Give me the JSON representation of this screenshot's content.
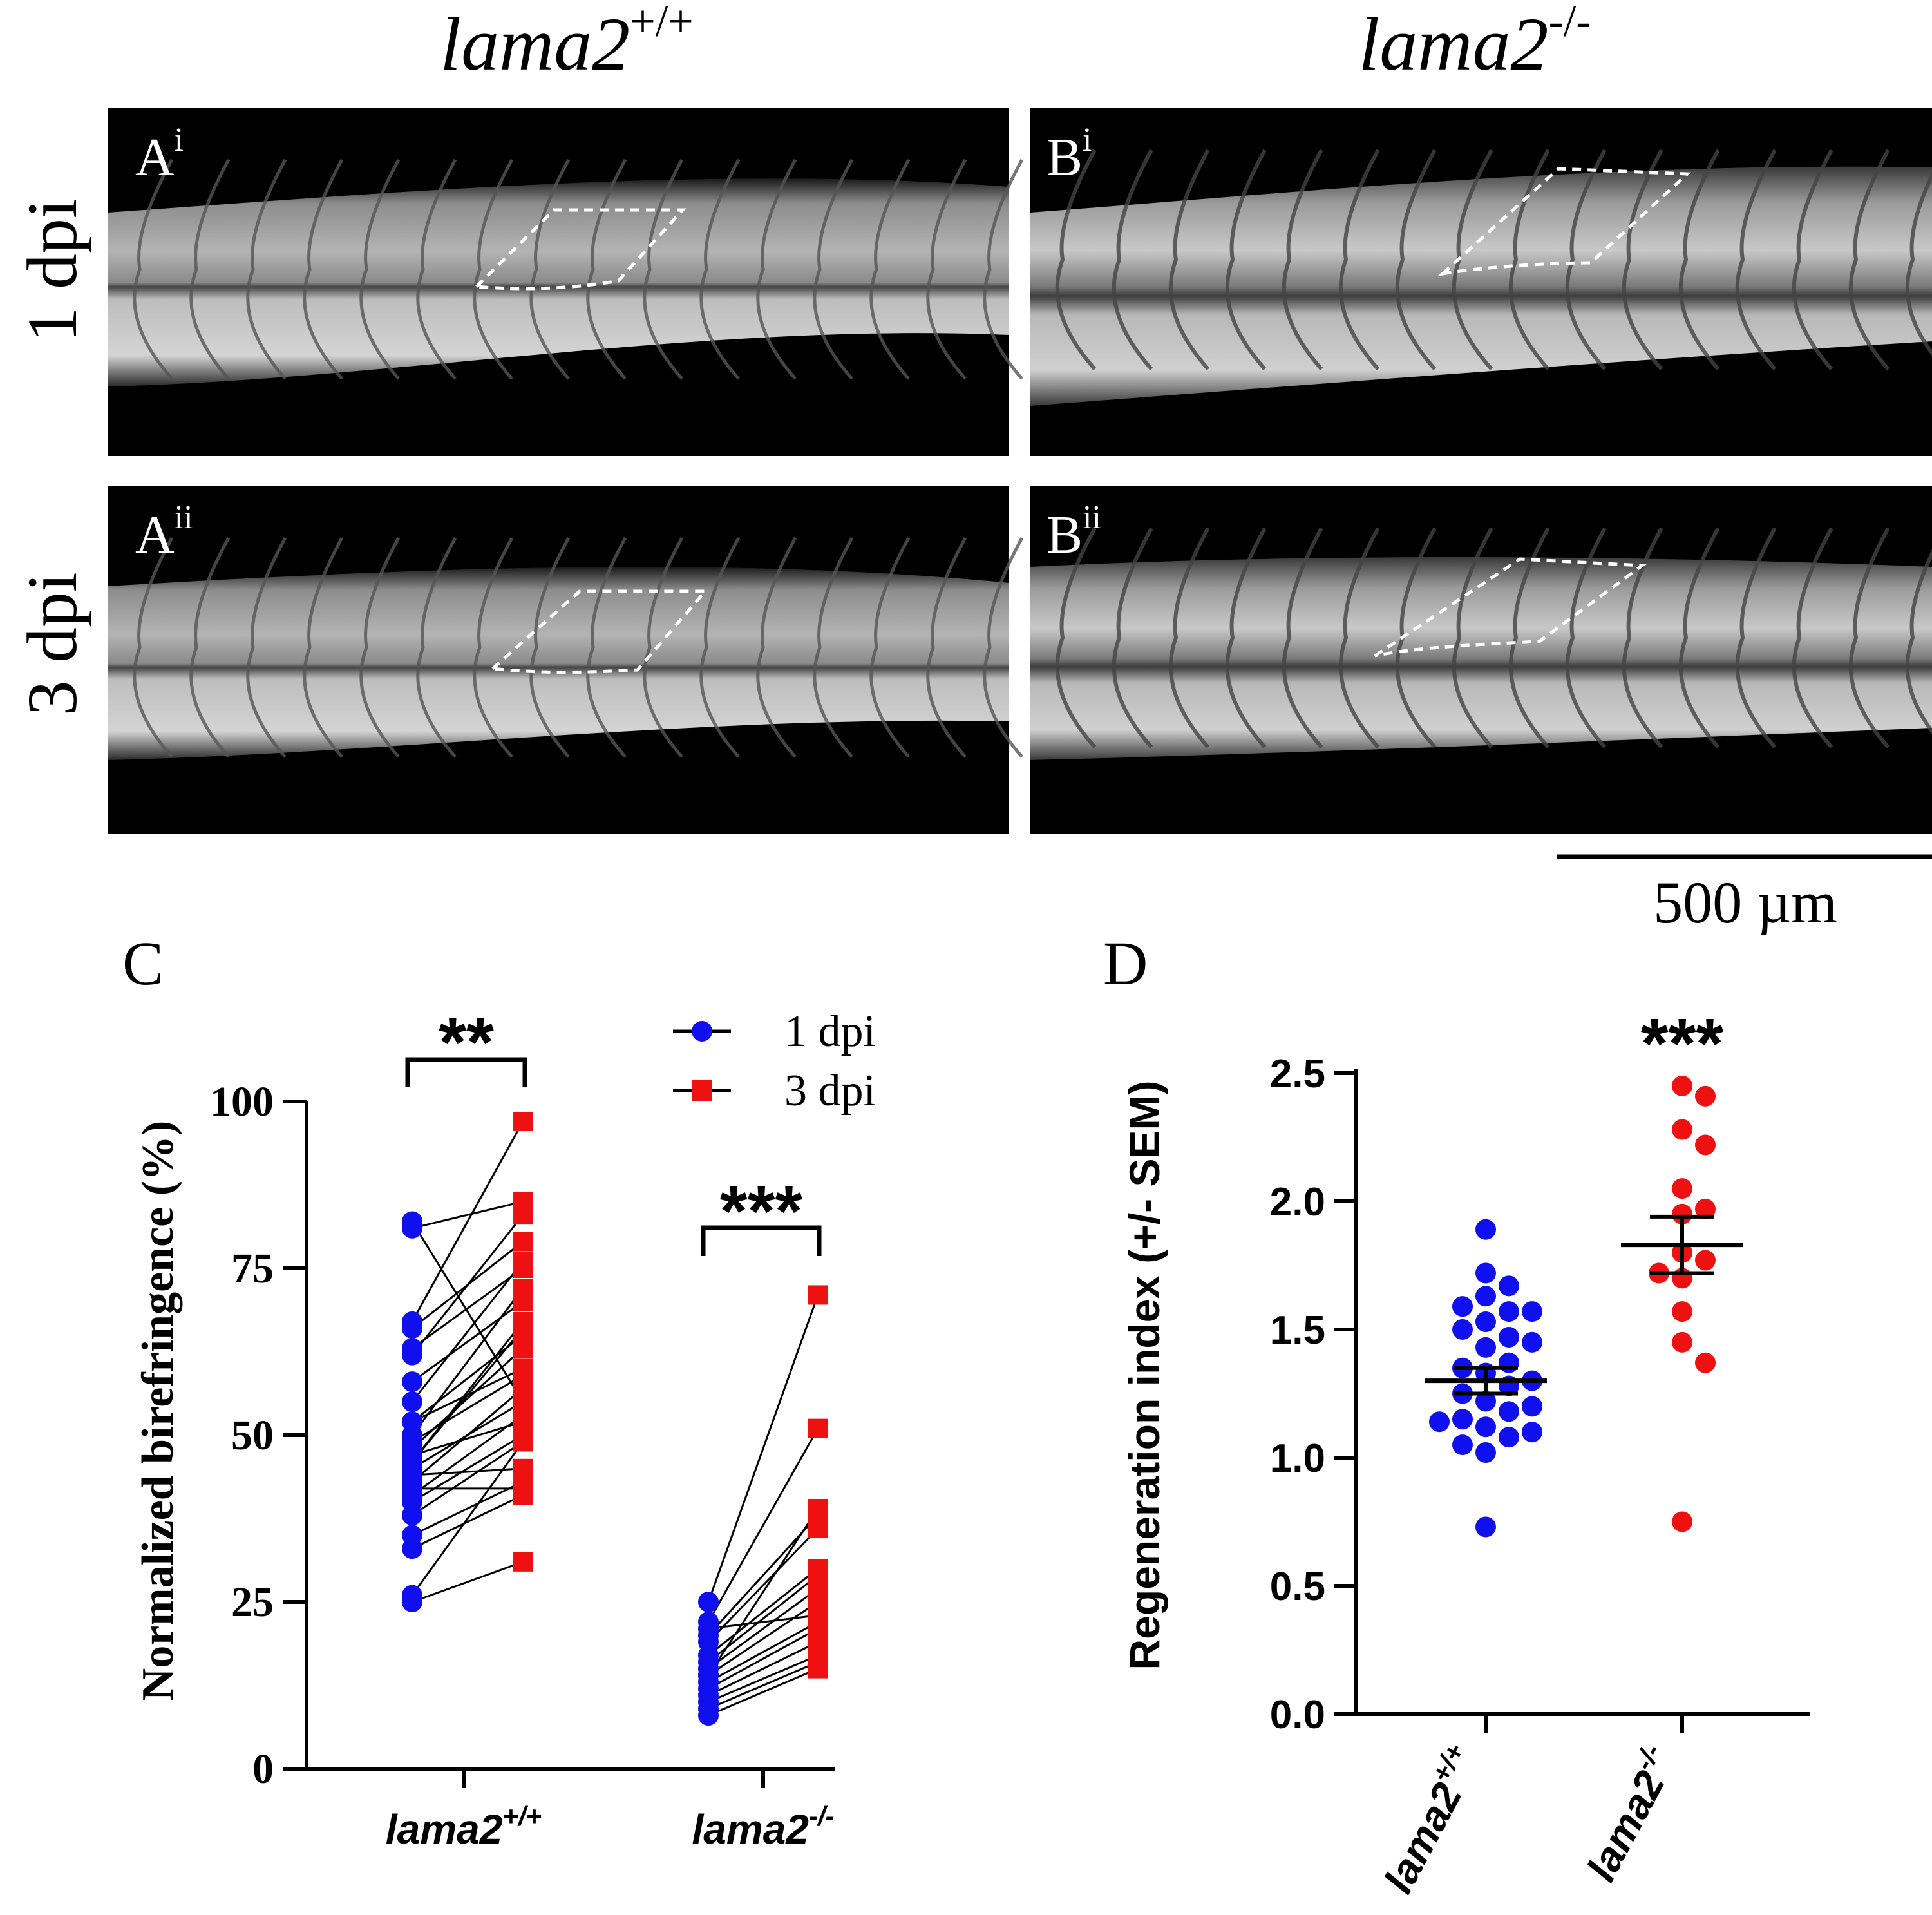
{
  "columns": [
    {
      "base": "lama2",
      "sup": "+/+"
    },
    {
      "base": "lama2",
      "sup": "-/-"
    }
  ],
  "rows": [
    "1 dpi",
    "3 dpi"
  ],
  "panels": [
    {
      "letter": "A",
      "sup": "i"
    },
    {
      "letter": "B",
      "sup": "i"
    },
    {
      "letter": "A",
      "sup": "ii"
    },
    {
      "letter": "B",
      "sup": "ii"
    }
  ],
  "scale_bar": {
    "label": "500 µm"
  },
  "colors": {
    "blue": "#1010ee",
    "red": "#ee1111",
    "black": "#000000"
  },
  "chart_data": [
    {
      "type": "scatter",
      "panel_label": "C",
      "ylabel": "Normalized birefringence (%)",
      "ylim": [
        0,
        100
      ],
      "yticks": [
        "0",
        "25",
        "50",
        "75",
        "100"
      ],
      "categories": [
        {
          "base": "lama2",
          "sup": "+/+"
        },
        {
          "base": "lama2",
          "sup": "-/-"
        }
      ],
      "legend": [
        {
          "name": "1 dpi",
          "marker": "circle",
          "color": "#1010ee"
        },
        {
          "name": "3 dpi",
          "marker": "square",
          "color": "#ee1111"
        }
      ],
      "significance": [
        "**",
        "***"
      ],
      "pairs": [
        {
          "group": "lama2+/+",
          "one_dpi": [
            82,
            81,
            67,
            66,
            62,
            58,
            55,
            52,
            50,
            49,
            48,
            47,
            46,
            45,
            44,
            42,
            40,
            38,
            35,
            33,
            25,
            52,
            46,
            43,
            26,
            63,
            41
          ],
          "three_dpi": [
            55,
            85,
            97,
            79,
            83,
            70,
            76,
            65,
            72,
            59,
            63,
            52,
            67,
            55,
            45,
            42,
            50,
            49,
            43,
            41,
            31,
            60,
            66,
            57,
            49,
            75,
            53
          ]
        },
        {
          "group": "lama2-/-",
          "one_dpi": [
            25,
            22,
            20,
            19,
            17,
            16,
            15,
            14,
            13,
            12,
            11,
            10,
            9,
            8,
            14,
            21
          ],
          "three_dpi": [
            71,
            51,
            38,
            36,
            30,
            29,
            27,
            25,
            22,
            21,
            19,
            17,
            16,
            15,
            39,
            23
          ]
        }
      ]
    },
    {
      "type": "scatter",
      "panel_label": "D",
      "ylabel": "Regeneration index (+/- SEM)",
      "ylim": [
        0,
        2.5
      ],
      "yticks": [
        "0.0",
        "0.5",
        "1.0",
        "1.5",
        "2.0",
        "2.5"
      ],
      "categories": [
        {
          "base": "lama2",
          "sup": "+/+"
        },
        {
          "base": "lama2",
          "sup": "-/-"
        }
      ],
      "significance": "***",
      "series": [
        {
          "name": "lama2+/+",
          "color": "#1010ee",
          "mean": 1.3,
          "sem": 0.05,
          "values": [
            1.89,
            1.72,
            1.67,
            1.63,
            1.59,
            1.57,
            1.57,
            1.53,
            1.5,
            1.47,
            1.45,
            1.43,
            1.37,
            1.35,
            1.33,
            1.3,
            1.28,
            1.25,
            1.22,
            1.2,
            1.18,
            1.15,
            1.14,
            1.12,
            1.1,
            1.08,
            1.05,
            1.02,
            0.73
          ]
        },
        {
          "name": "lama2-/-",
          "color": "#ee1111",
          "mean": 1.83,
          "sem": 0.11,
          "values": [
            2.45,
            2.41,
            2.28,
            2.22,
            2.05,
            1.97,
            1.95,
            1.8,
            1.77,
            1.72,
            1.7,
            1.57,
            1.45,
            1.37,
            0.75
          ]
        }
      ]
    }
  ]
}
